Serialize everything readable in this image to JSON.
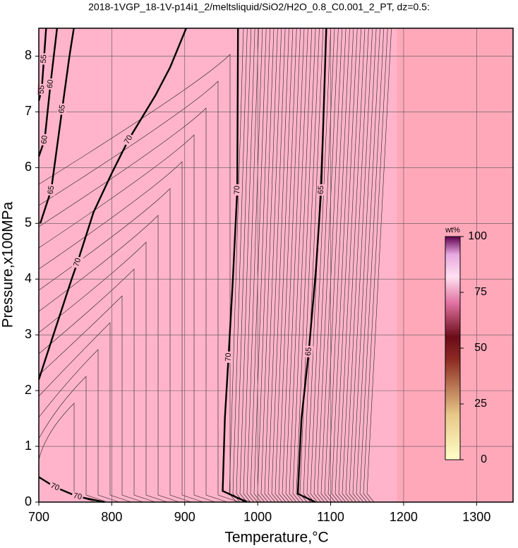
{
  "chart_data": {
    "type": "contour",
    "title": "2018-1VGP_18-1V-p14i1_2/meltsliquid/SiO2/H2O_0.8_C0.001_2_PT, dz=0.5:",
    "xlabel": "Temperature,°C",
    "ylabel": "Pressure,x100MPa",
    "xlim": [
      700,
      1350
    ],
    "ylim": [
      0,
      8.5
    ],
    "xticks": [
      700,
      800,
      900,
      1000,
      1100,
      1200,
      1300
    ],
    "yticks": [
      0,
      1,
      2,
      3,
      4,
      5,
      6,
      7,
      8
    ],
    "grid": true,
    "colorbar": {
      "label": "wt%",
      "clim": [
        0,
        100
      ],
      "ticks": [
        0,
        25,
        50,
        75,
        100
      ]
    },
    "contours": [
      {
        "level": 70,
        "x": [
          700,
          720,
          745,
          753,
          775,
          800,
          823,
          860,
          880,
          902
        ],
        "y": [
          2.2,
          3.0,
          4.0,
          4.3,
          5.2,
          5.9,
          6.5,
          7.3,
          7.8,
          8.5
        ]
      },
      {
        "level": 70,
        "x": [
          985,
          952,
          955,
          960,
          966,
          972,
          973
        ],
        "y": [
          0,
          0.2,
          1.5,
          2.6,
          4.0,
          5.6,
          8.5
        ]
      },
      {
        "level": 65,
        "x": [
          1079,
          1055,
          1060,
          1070,
          1080,
          1087,
          1094
        ],
        "y": [
          0,
          0.15,
          1.5,
          2.7,
          4.2,
          5.6,
          8.5
        ]
      },
      {
        "level": 65,
        "x": [
          702,
          717,
          732,
          742,
          748
        ],
        "y": [
          5.0,
          5.6,
          7.05,
          8.0,
          8.5
        ]
      },
      {
        "level": 60,
        "x": [
          700,
          708,
          716,
          725
        ],
        "y": [
          6.2,
          6.5,
          7.5,
          8.5
        ]
      },
      {
        "level": 55,
        "x": [
          700,
          704,
          707,
          710
        ],
        "y": [
          7.2,
          7.4,
          7.95,
          8.5
        ]
      },
      {
        "level": 70,
        "x": [
          700,
          722,
          753,
          790
        ],
        "y": [
          0.45,
          0.27,
          0.1,
          0
        ]
      }
    ]
  }
}
